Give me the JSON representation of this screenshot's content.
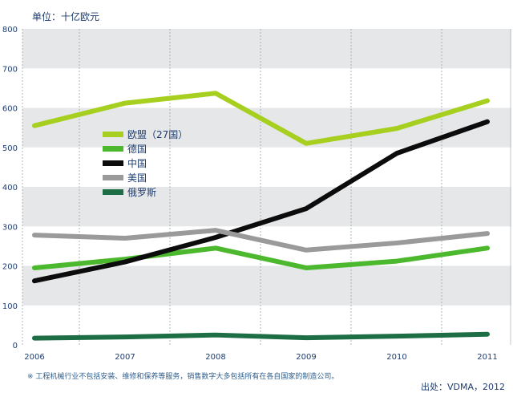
{
  "chart_data": {
    "type": "line",
    "unit_label": "单位：十亿欧元",
    "x": [
      "2006",
      "2007",
      "2008",
      "2009",
      "2010",
      "2011"
    ],
    "ylim": [
      0,
      800
    ],
    "yticks": [
      0,
      100,
      200,
      300,
      400,
      500,
      600,
      700,
      800
    ],
    "grid": true,
    "series": [
      {
        "name": "欧盟（27国）",
        "color": "#a6cf1f",
        "values": [
          555,
          612,
          637,
          510,
          548,
          618
        ]
      },
      {
        "name": "德国",
        "color": "#4cb82d",
        "values": [
          195,
          217,
          245,
          195,
          212,
          245
        ]
      },
      {
        "name": "中国",
        "color": "#0c0c0c",
        "values": [
          162,
          210,
          272,
          345,
          485,
          565
        ]
      },
      {
        "name": "美国",
        "color": "#9a9a9a",
        "values": [
          278,
          270,
          290,
          240,
          258,
          282
        ]
      },
      {
        "name": "俄罗斯",
        "color": "#1e6e45",
        "values": [
          17,
          20,
          25,
          18,
          22,
          27
        ]
      }
    ],
    "footnote": "※ 工程机械行业不包括安装、维修和保养等服务，销售数字大多包括所有在各自国家的制造公司。",
    "source": "出处：VDMA，2012",
    "legend_position": "upper-left-center"
  }
}
